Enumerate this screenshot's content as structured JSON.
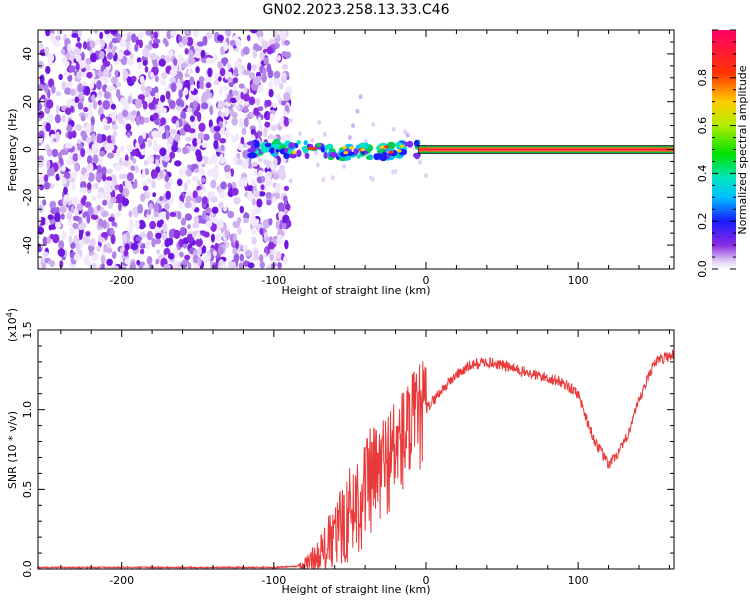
{
  "title": "GN02.2023.258.13.33.C46",
  "colors": {
    "line": "#e83a3a",
    "background": "#ffffff",
    "axes": "#000000"
  },
  "chart_data": [
    {
      "type": "heatmap",
      "xlabel": "Height of straight line (km)",
      "ylabel": "Frequency (Hz)",
      "xlim": [
        -255,
        163
      ],
      "ylim": [
        -50,
        50
      ],
      "xticks": [
        -200,
        -100,
        0,
        100
      ],
      "xtick_labels": [
        "-200",
        "-100",
        "0",
        "100"
      ],
      "yticks": [
        -40,
        -20,
        0,
        20,
        40
      ],
      "ytick_labels": [
        "-40",
        "-20",
        "0",
        "20",
        "40"
      ],
      "noise_region": {
        "x_range": [
          -255,
          -90
        ],
        "y_range": [
          -50,
          50
        ],
        "level": 0.1
      },
      "features": [
        {
          "x_range": [
            -115,
            -5
          ],
          "y_center": 0,
          "y_spread": 3,
          "level": "0.2-0.5"
        },
        {
          "x_range": [
            -5,
            163
          ],
          "y_center": 0,
          "y_spread": 1,
          "level": "0.8-1.0"
        }
      ],
      "colorbar": {
        "label": "Normalized spectral amplitude",
        "range": [
          0.0,
          1.0
        ],
        "ticks": [
          0.0,
          0.2,
          0.4,
          0.6,
          0.8
        ],
        "tick_labels": [
          "0.0",
          "0.2",
          "0.4",
          "0.6",
          "0.8"
        ]
      }
    },
    {
      "type": "line",
      "xlabel": "Height of straight line (km)",
      "ylabel": "SNR (10 * v/v)",
      "y_multiplier": "(x10",
      "y_multiplier_exp": "4",
      "y_multiplier_close": ")",
      "xlim": [
        -255,
        163
      ],
      "ylim": [
        0,
        1.5
      ],
      "xticks": [
        -200,
        -100,
        0,
        100
      ],
      "xtick_labels": [
        "-200",
        "-100",
        "0",
        "100"
      ],
      "yticks": [
        0,
        0.5,
        1.0,
        1.5
      ],
      "ytick_labels": [
        "0.0",
        "0.5",
        "1.0",
        "1.5"
      ],
      "series": [
        {
          "x": [
            -255,
            -220,
            -180,
            -140,
            -100,
            -80,
            -70,
            -60,
            -50,
            -40,
            -30,
            -20,
            -10,
            0,
            10,
            20,
            30,
            40,
            50,
            60,
            70,
            80,
            90,
            100,
            110,
            120,
            130,
            140,
            150,
            163
          ],
          "values": [
            0.01,
            0.01,
            0.01,
            0.01,
            0.01,
            0.02,
            0.08,
            0.2,
            0.35,
            0.5,
            0.62,
            0.75,
            0.88,
            1.0,
            1.12,
            1.22,
            1.28,
            1.3,
            1.28,
            1.25,
            1.22,
            1.2,
            1.17,
            1.1,
            0.82,
            0.65,
            0.78,
            1.05,
            1.3,
            1.35
          ]
        }
      ]
    }
  ]
}
